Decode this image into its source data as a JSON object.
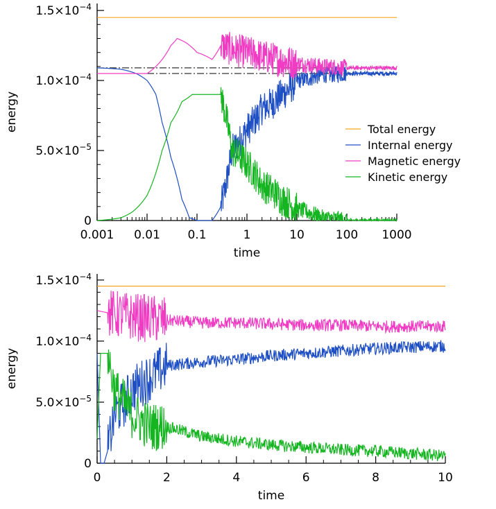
{
  "chart_data": [
    {
      "type": "line",
      "x_scale": "log",
      "xlabel": "time",
      "ylabel": "energy",
      "xlim": [
        0.001,
        1000
      ],
      "ylim": [
        0,
        0.000155
      ],
      "x_tick_labels": [
        "0.001",
        "0.01",
        "0.1",
        "1",
        "10",
        "100",
        "1000"
      ],
      "x_tick_values": [
        0.001,
        0.01,
        0.1,
        1,
        10,
        100,
        1000
      ],
      "y_ticks": [
        {
          "value": 0,
          "mantissa": "0",
          "exp": ""
        },
        {
          "value": 5e-05,
          "mantissa": "5.0×10",
          "exp": "−5"
        },
        {
          "value": 0.0001,
          "mantissa": "1.0×10",
          "exp": "−4"
        },
        {
          "value": 0.00015,
          "mantissa": "1.5×10",
          "exp": "−4"
        }
      ],
      "legend": {
        "position": "right-middle",
        "entries": [
          "Total energy",
          "Internal energy",
          "Magnetic energy",
          "Kinetic energy"
        ]
      },
      "reference_lines": [
        {
          "y": 0.000109,
          "style": "dash-dot"
        },
        {
          "y": 0.000105,
          "style": "dash-dot"
        }
      ],
      "series": [
        {
          "name": "Total energy",
          "color": "#f5a623",
          "x": [
            0.001,
            1000
          ],
          "y": [
            0.000145,
            0.000145
          ]
        },
        {
          "name": "Internal energy",
          "color": "#1f4fc4",
          "x": [
            0.001,
            0.003,
            0.006,
            0.01,
            0.015,
            0.02,
            0.03,
            0.05,
            0.07,
            0.1,
            0.2,
            0.3,
            0.5,
            1,
            2,
            5,
            10,
            30,
            100,
            1000
          ],
          "y": [
            0.000109,
            0.000108,
            0.000105,
            0.0001,
            9e-05,
            7e-05,
            4.5e-05,
            1.5e-05,
            2e-06,
            0,
            0,
            1e-05,
            5e-05,
            6.5e-05,
            8e-05,
            9e-05,
            0.0001,
            0.000104,
            0.000105,
            0.000105
          ]
        },
        {
          "name": "Magnetic energy",
          "color": "#f03cc3",
          "x": [
            0.001,
            0.01,
            0.02,
            0.03,
            0.04,
            0.06,
            0.1,
            0.2,
            0.3,
            0.5,
            1,
            2,
            5,
            10,
            30,
            100,
            1000
          ],
          "y": [
            0.000105,
            0.000105,
            0.000115,
            0.000125,
            0.00013,
            0.000127,
            0.00012,
            0.000115,
            0.000125,
            0.000122,
            0.00012,
            0.000117,
            0.000114,
            0.000112,
            0.00011,
            0.000109,
            0.000109
          ]
        },
        {
          "name": "Kinetic energy",
          "color": "#15b521",
          "x": [
            0.001,
            0.003,
            0.005,
            0.01,
            0.02,
            0.03,
            0.05,
            0.08,
            0.1,
            0.2,
            0.3,
            0.5,
            1,
            2,
            5,
            10,
            30,
            100,
            1000
          ],
          "y": [
            0,
            2e-06,
            6e-06,
            1.8e-05,
            5e-05,
            7e-05,
            8.5e-05,
            9e-05,
            9e-05,
            9e-05,
            9e-05,
            5e-05,
            4e-05,
            2.5e-05,
            1.5e-05,
            8e-06,
            2e-06,
            0,
            0
          ]
        }
      ]
    },
    {
      "type": "line",
      "xlabel": "time",
      "ylabel": "energy",
      "xlim": [
        0,
        10
      ],
      "ylim": [
        0,
        0.000155
      ],
      "x_tick_labels": [
        "0",
        "2",
        "4",
        "6",
        "8",
        "10"
      ],
      "x_tick_values": [
        0,
        2,
        4,
        6,
        8,
        10
      ],
      "y_ticks": [
        {
          "value": 0,
          "mantissa": "0",
          "exp": ""
        },
        {
          "value": 5e-05,
          "mantissa": "5.0×10",
          "exp": "−5"
        },
        {
          "value": 0.0001,
          "mantissa": "1.0×10",
          "exp": "−4"
        },
        {
          "value": 0.00015,
          "mantissa": "1.5×10",
          "exp": "−4"
        }
      ],
      "series": [
        {
          "name": "Total energy",
          "color": "#f5a623",
          "x": [
            0,
            10
          ],
          "y": [
            0.000145,
            0.000145
          ]
        },
        {
          "name": "Internal energy",
          "color": "#1f4fc4",
          "x": [
            0,
            0.1,
            0.2,
            0.3,
            0.5,
            0.8,
            1,
            1.5,
            2,
            3,
            4,
            5,
            6,
            7,
            8,
            9,
            10
          ],
          "y": [
            9e-05,
            0,
            0,
            1e-05,
            4e-05,
            5e-05,
            6e-05,
            7e-05,
            8e-05,
            8.3e-05,
            8.5e-05,
            8.8e-05,
            9e-05,
            9.2e-05,
            9.4e-05,
            9.5e-05,
            9.6e-05
          ]
        },
        {
          "name": "Magnetic energy",
          "color": "#f03cc3",
          "x": [
            0,
            0.5,
            1,
            2,
            3,
            4,
            5,
            6,
            7,
            8,
            9,
            10
          ],
          "y": [
            0.000125,
            0.000122,
            0.00012,
            0.000117,
            0.000115,
            0.000115,
            0.000114,
            0.000113,
            0.000113,
            0.000112,
            0.000112,
            0.000112
          ]
        },
        {
          "name": "Kinetic energy",
          "color": "#15b521",
          "x": [
            0,
            0.1,
            0.3,
            0.5,
            1,
            1.5,
            2,
            3,
            4,
            5,
            6,
            7,
            8,
            9,
            10
          ],
          "y": [
            2e-05,
            9e-05,
            9e-05,
            6e-05,
            4e-05,
            3e-05,
            3e-05,
            2.2e-05,
            1.8e-05,
            1.5e-05,
            1.3e-05,
            1.1e-05,
            1e-05,
            8e-06,
            6e-06
          ]
        }
      ]
    }
  ]
}
